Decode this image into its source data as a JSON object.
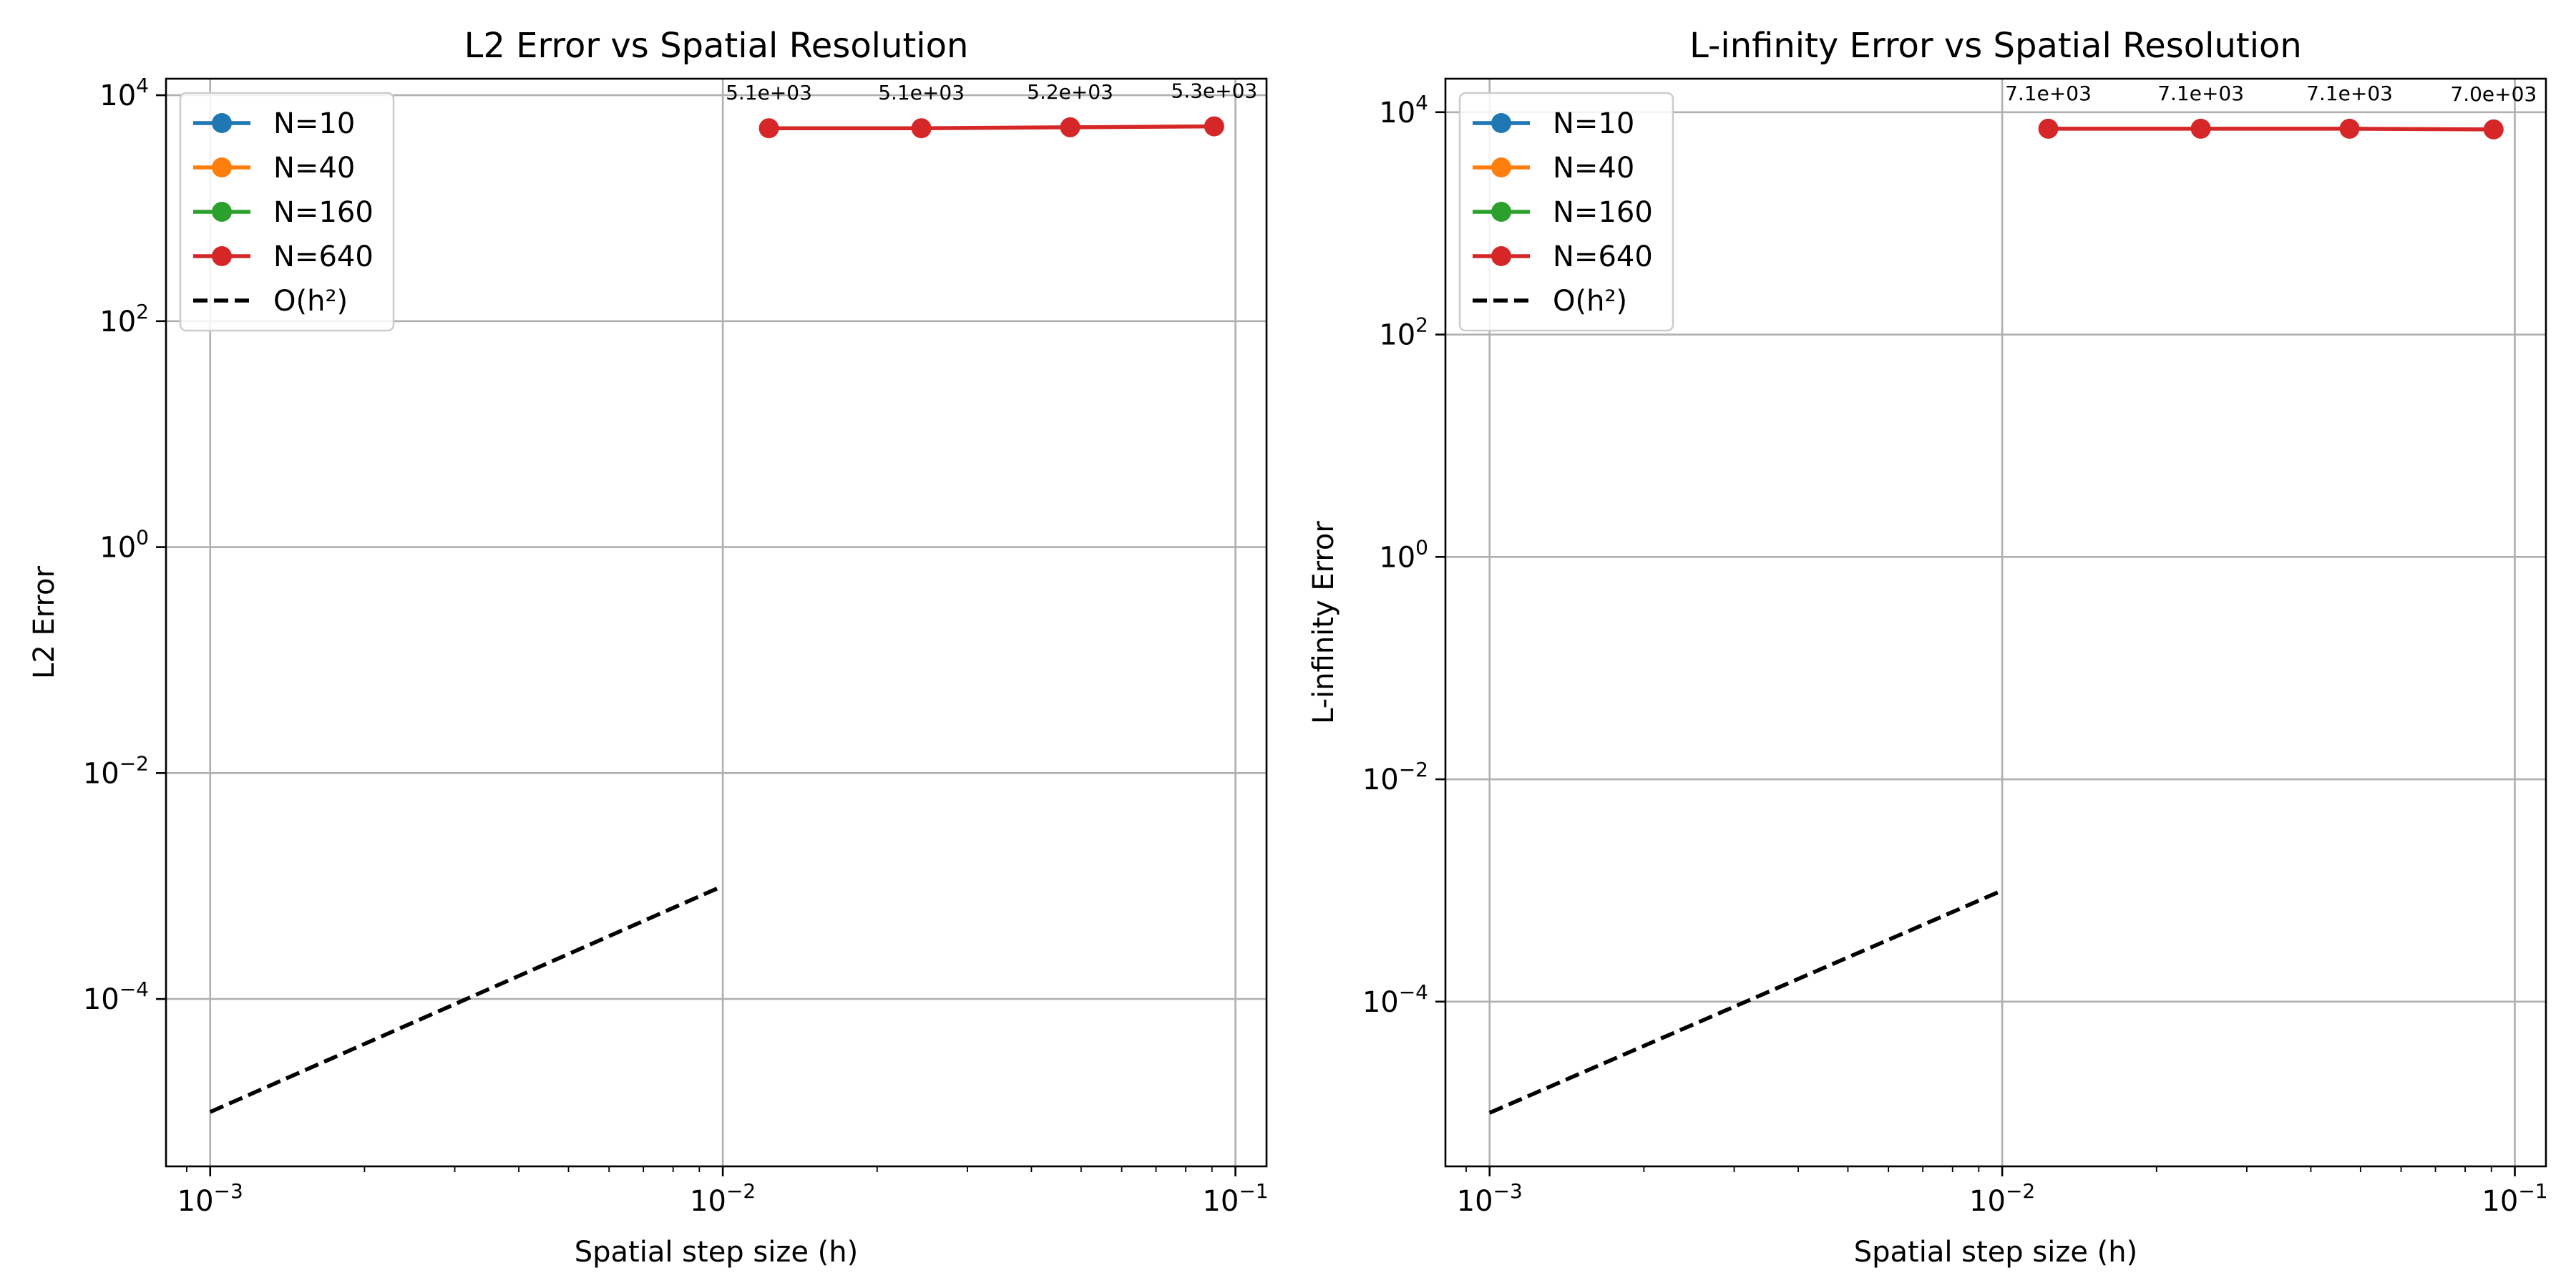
{
  "chart_data": [
    {
      "type": "line",
      "title": "L2 Error vs Spatial Resolution",
      "xlabel": "Spatial step size (h)",
      "ylabel": "L2 Error",
      "xscale": "log",
      "yscale": "log",
      "xlim": [
        0.00082,
        0.115
      ],
      "ylim": [
        3.3e-06,
        14000
      ],
      "xticks": [
        {
          "value": 0.001,
          "base": "10",
          "exp": "−3"
        },
        {
          "value": 0.01,
          "base": "10",
          "exp": "−2"
        },
        {
          "value": 0.1,
          "base": "10",
          "exp": "−1"
        }
      ],
      "yticks": [
        {
          "value": 0.0001,
          "base": "10",
          "exp": "−4"
        },
        {
          "value": 0.01,
          "base": "10",
          "exp": "−2"
        },
        {
          "value": 1,
          "base": "10",
          "exp": "0"
        },
        {
          "value": 100,
          "base": "10",
          "exp": "2"
        },
        {
          "value": 10000,
          "base": "10",
          "exp": "4"
        }
      ],
      "grid": true,
      "legend_position": "top-left",
      "series": [
        {
          "name": "N=10",
          "color": "#1f77b4",
          "style": "solid-marker",
          "x": [],
          "y": []
        },
        {
          "name": "N=40",
          "color": "#ff7f0e",
          "style": "solid-marker",
          "x": [],
          "y": []
        },
        {
          "name": "N=160",
          "color": "#2ca02c",
          "style": "solid-marker",
          "x": [],
          "y": []
        },
        {
          "name": "N=640",
          "color": "#d62728",
          "style": "solid-marker",
          "x": [
            0.0123,
            0.0244,
            0.0476,
            0.0909
          ],
          "y": [
            5100,
            5100,
            5200,
            5300
          ]
        },
        {
          "name": "O(h²)",
          "color": "#000000",
          "style": "dashed",
          "x": [
            0.001,
            0.01
          ],
          "y": [
            1e-05,
            0.001
          ]
        }
      ],
      "annotations": [
        {
          "x": 0.0123,
          "y": 5100,
          "text": "5.1e+03"
        },
        {
          "x": 0.0244,
          "y": 5100,
          "text": "5.1e+03"
        },
        {
          "x": 0.0476,
          "y": 5200,
          "text": "5.2e+03"
        },
        {
          "x": 0.0909,
          "y": 5300,
          "text": "5.3e+03"
        }
      ]
    },
    {
      "type": "line",
      "title": "L-infinity Error vs Spatial Resolution",
      "xlabel": "Spatial step size (h)",
      "ylabel": "L-infinity Error",
      "xscale": "log",
      "yscale": "log",
      "xlim": [
        0.00082,
        0.115
      ],
      "ylim": [
        3.3e-06,
        20000
      ],
      "xticks": [
        {
          "value": 0.001,
          "base": "10",
          "exp": "−3"
        },
        {
          "value": 0.01,
          "base": "10",
          "exp": "−2"
        },
        {
          "value": 0.1,
          "base": "10",
          "exp": "−1"
        }
      ],
      "yticks": [
        {
          "value": 0.0001,
          "base": "10",
          "exp": "−4"
        },
        {
          "value": 0.01,
          "base": "10",
          "exp": "−2"
        },
        {
          "value": 1,
          "base": "10",
          "exp": "0"
        },
        {
          "value": 100,
          "base": "10",
          "exp": "2"
        },
        {
          "value": 10000,
          "base": "10",
          "exp": "4"
        }
      ],
      "grid": true,
      "legend_position": "top-left",
      "series": [
        {
          "name": "N=10",
          "color": "#1f77b4",
          "style": "solid-marker",
          "x": [],
          "y": []
        },
        {
          "name": "N=40",
          "color": "#ff7f0e",
          "style": "solid-marker",
          "x": [],
          "y": []
        },
        {
          "name": "N=160",
          "color": "#2ca02c",
          "style": "solid-marker",
          "x": [],
          "y": []
        },
        {
          "name": "N=640",
          "color": "#d62728",
          "style": "solid-marker",
          "x": [
            0.0123,
            0.0244,
            0.0476,
            0.0909
          ],
          "y": [
            7100,
            7100,
            7100,
            7000
          ]
        },
        {
          "name": "O(h²)",
          "color": "#000000",
          "style": "dashed",
          "x": [
            0.001,
            0.01
          ],
          "y": [
            1e-05,
            0.001
          ]
        }
      ],
      "annotations": [
        {
          "x": 0.0123,
          "y": 7100,
          "text": "7.1e+03"
        },
        {
          "x": 0.0244,
          "y": 7100,
          "text": "7.1e+03"
        },
        {
          "x": 0.0476,
          "y": 7100,
          "text": "7.1e+03"
        },
        {
          "x": 0.0909,
          "y": 7000,
          "text": "7.0e+03"
        }
      ]
    }
  ]
}
